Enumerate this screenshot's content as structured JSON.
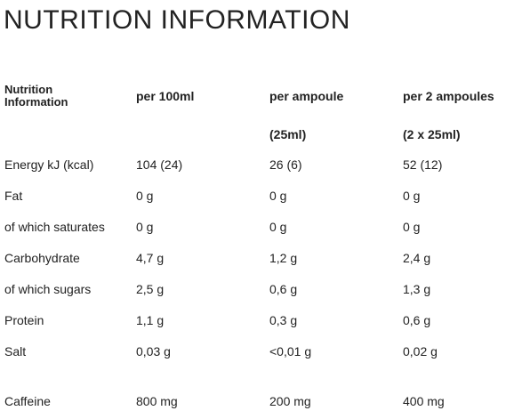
{
  "header": {
    "title": "NUTRITION INFORMATION"
  },
  "table": {
    "header": [
      "Nutrition Information",
      "per 100ml",
      "per ampoule",
      "per 2 ampoules"
    ],
    "header_notes": {
      "2": "(25ml)",
      "3": "(2 x 25ml)"
    },
    "rows": [
      [
        "Energy kJ (kcal)",
        "104 (24)",
        "26 (6)",
        "52 (12)"
      ],
      [
        "Fat",
        "0 g",
        "0 g",
        "0 g"
      ],
      [
        "of which saturates",
        "0 g",
        "0 g",
        "0 g"
      ],
      [
        "Carbohydrate",
        "4,7 g",
        "1,2 g",
        "2,4 g"
      ],
      [
        "of which sugars",
        "2,5 g",
        "0,6 g",
        "1,3 g"
      ],
      [
        "Protein",
        "1,1 g",
        "0,3 g",
        "0,6 g"
      ],
      [
        "Salt",
        "0,03 g",
        "<0,01 g",
        "0,02 g"
      ],
      [
        "Caffeine",
        "800 mg",
        "200 mg",
        "400 mg"
      ]
    ]
  }
}
